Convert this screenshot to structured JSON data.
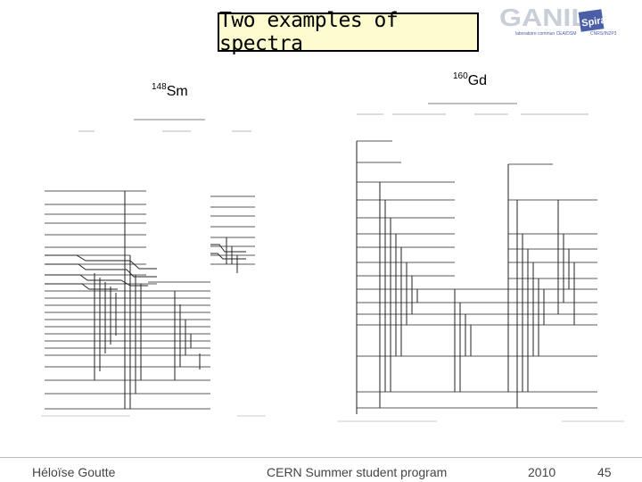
{
  "slide": {
    "title": "Two examples of spectra",
    "nucleus_left": {
      "mass": "148",
      "symbol": "Sm"
    },
    "nucleus_right": {
      "mass": "160",
      "symbol": "Gd"
    }
  },
  "logo": {
    "main": "GANIL",
    "sub": "Spiral2",
    "caption_left": "laboratoire commun CEA/DSM",
    "caption_right": "CNRS/IN2P3"
  },
  "footer": {
    "author": "Héloïse Goutte",
    "event": "CERN Summer student program",
    "year": "2010",
    "page": "45"
  }
}
